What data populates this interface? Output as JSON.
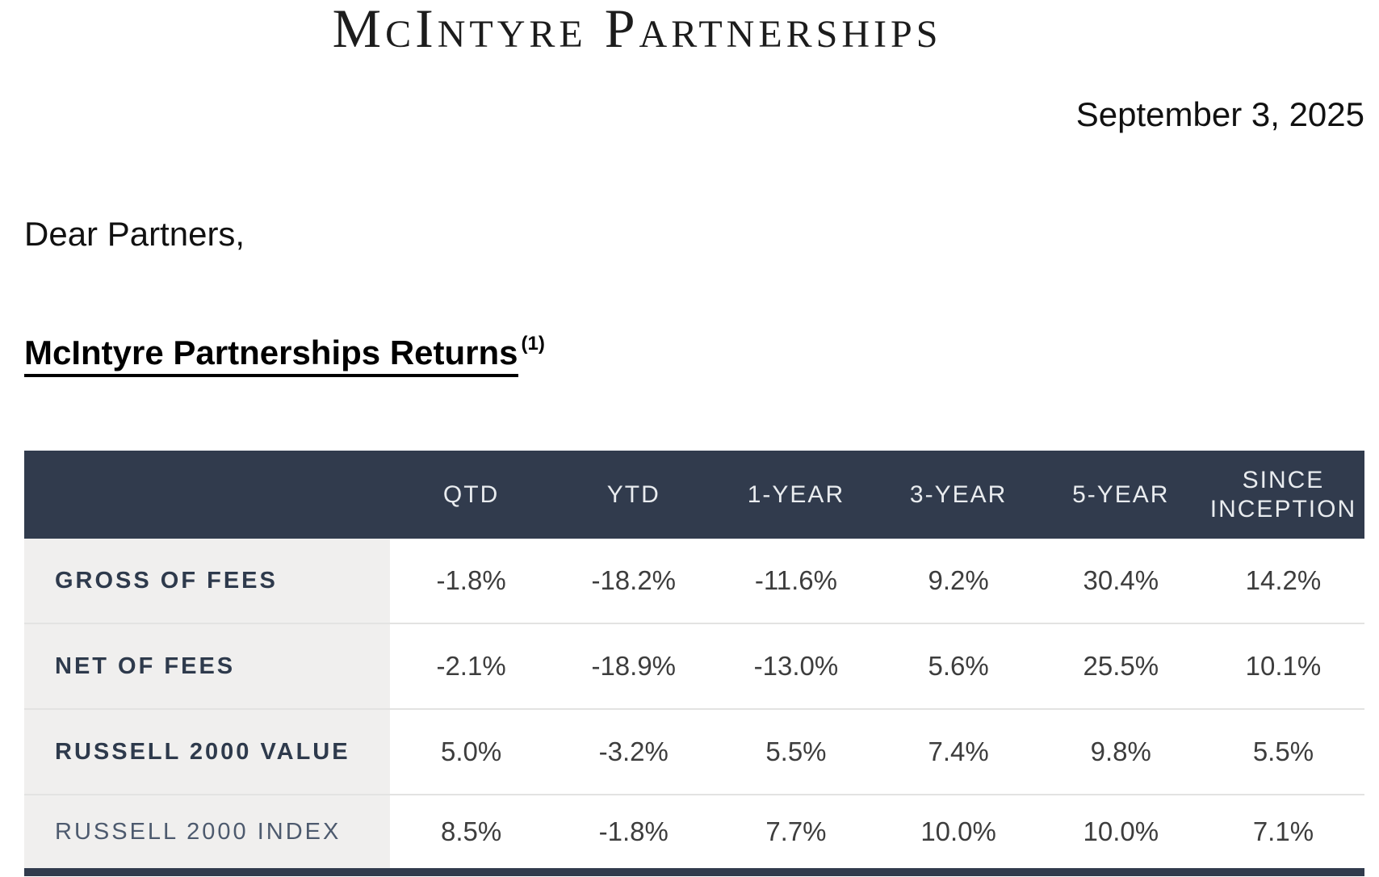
{
  "letter": {
    "company_title": "McIntyre Partnerships",
    "date": "September 3, 2025",
    "salutation": "Dear Partners,",
    "section_heading": "McIntyre Partnerships Returns",
    "section_heading_footnote": "(1)"
  },
  "returns_table": {
    "columns": [
      "QTD",
      "YTD",
      "1-YEAR",
      "3-YEAR",
      "5-YEAR",
      "SINCE INCEPTION"
    ],
    "rows": [
      {
        "label": "GROSS OF FEES",
        "values": [
          "-1.8%",
          "-18.2%",
          "-11.6%",
          "9.2%",
          "30.4%",
          "14.2%"
        ]
      },
      {
        "label": "NET OF FEES",
        "values": [
          "-2.1%",
          "-18.9%",
          "-13.0%",
          "5.6%",
          "25.5%",
          "10.1%"
        ]
      },
      {
        "label": "RUSSELL 2000 VALUE",
        "values": [
          "5.0%",
          "-3.2%",
          "5.5%",
          "7.4%",
          "9.8%",
          "5.5%"
        ]
      },
      {
        "label": "RUSSELL 2000 INDEX",
        "values": [
          "8.5%",
          "-1.8%",
          "7.7%",
          "10.0%",
          "10.0%",
          "7.1%"
        ]
      }
    ]
  },
  "colors": {
    "table_header_bg": "#313b4d",
    "label_cell_bg": "#f0efee",
    "label_text": "#2e3a4c",
    "header_text": "#e9ecef",
    "row_divider": "#e3e3e2",
    "bottom_border": "#313b4d"
  }
}
